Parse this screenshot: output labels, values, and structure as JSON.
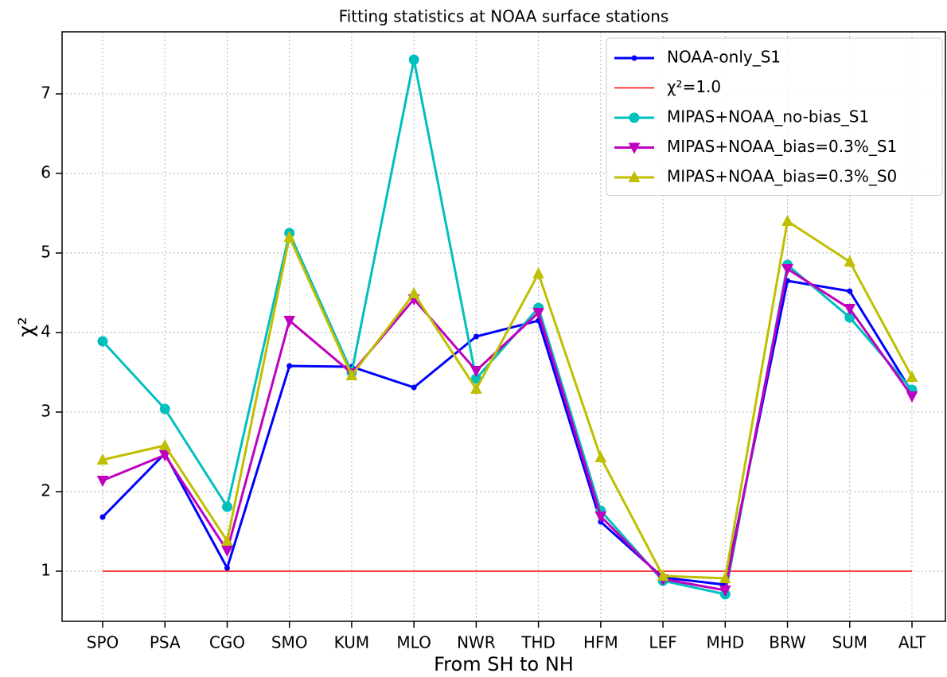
{
  "chart_data": {
    "type": "line",
    "title": "Fitting statistics at NOAA surface stations",
    "x_label": "From SH to NH",
    "y_label": "χ²",
    "categories": [
      "SPO",
      "PSA",
      "CGO",
      "SMO",
      "KUM",
      "MLO",
      "NWR",
      "THD",
      "HFM",
      "LEF",
      "MHD",
      "BRW",
      "SUM",
      "ALT"
    ],
    "series": [
      {
        "name": "NOAA-only_S1",
        "color": "#0000ff",
        "marker": "small-circle",
        "values": [
          1.68,
          2.48,
          1.04,
          3.58,
          3.57,
          3.31,
          3.95,
          4.15,
          1.62,
          0.92,
          0.83,
          4.65,
          4.52,
          3.25
        ]
      },
      {
        "name": "χ²=1.0",
        "color": "#ff0000",
        "marker": "none",
        "values": [
          1,
          1,
          1,
          1,
          1,
          1,
          1,
          1,
          1,
          1,
          1,
          1,
          1,
          1
        ]
      },
      {
        "name": "MIPAS+NOAA_no-bias_S1",
        "color": "#00bfbf",
        "marker": "circle",
        "values": [
          3.89,
          3.04,
          1.81,
          5.25,
          3.5,
          7.43,
          3.42,
          4.31,
          1.76,
          0.88,
          0.71,
          4.85,
          4.19,
          3.28
        ]
      },
      {
        "name": "MIPAS+NOAA_bias=0.3%_S1",
        "color": "#bf00bf",
        "marker": "triangle-down",
        "values": [
          2.14,
          2.46,
          1.26,
          4.15,
          3.49,
          4.42,
          3.52,
          4.25,
          1.69,
          0.9,
          0.76,
          4.8,
          4.3,
          3.2
        ]
      },
      {
        "name": "MIPAS+NOAA_bias=0.3%_S0",
        "color": "#bfbf00",
        "marker": "triangle-up",
        "values": [
          2.4,
          2.58,
          1.38,
          5.2,
          3.46,
          4.49,
          3.29,
          4.74,
          2.43,
          0.94,
          0.91,
          5.4,
          4.89,
          3.44
        ]
      }
    ],
    "ylim": [
      0.37,
      7.78
    ],
    "yticks": [
      1,
      2,
      3,
      4,
      5,
      6,
      7
    ],
    "grid": true,
    "legend": "upper right"
  }
}
